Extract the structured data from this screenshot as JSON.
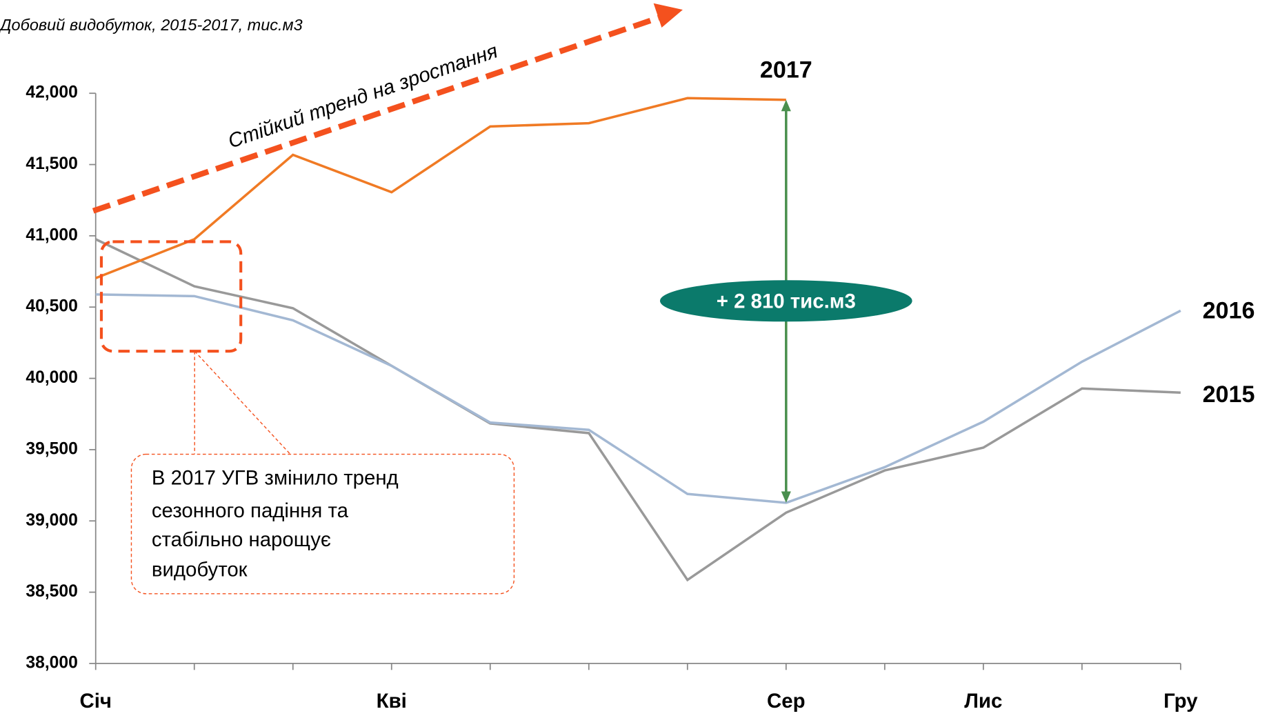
{
  "chart_data": {
    "type": "line",
    "title": "Добовий видобуток, 2015-2017, тис.м3",
    "categories": [
      "Січ",
      null,
      null,
      "Кві",
      null,
      null,
      null,
      "Сер",
      null,
      "Лис",
      null,
      "Гру"
    ],
    "series": [
      {
        "name": "2017",
        "color": "#f07a24",
        "values": [
          40703,
          40976,
          41568,
          41306,
          41767,
          41790,
          41966,
          41954,
          null,
          null,
          null,
          null
        ]
      },
      {
        "name": "2016",
        "color": "#a3b8d3",
        "values": [
          40589,
          40577,
          40407,
          40088,
          39690,
          39639,
          39189,
          39127,
          39377,
          39696,
          40117,
          40475
        ]
      },
      {
        "name": "2015",
        "color": "#999999",
        "values": [
          40976,
          40646,
          40492,
          40088,
          39684,
          39616,
          38586,
          39058,
          39354,
          39514,
          39929,
          39900
        ]
      }
    ],
    "ylim": [
      38000,
      42000
    ],
    "yticks": [
      {
        "value": 38000,
        "label": "38,000"
      },
      {
        "value": 38500,
        "label": "38,500"
      },
      {
        "value": 39000,
        "label": "39,000"
      },
      {
        "value": 39500,
        "label": "39,500"
      },
      {
        "value": 40000,
        "label": "40,000"
      },
      {
        "value": 40500,
        "label": "40,500"
      },
      {
        "value": 41000,
        "label": "41,000"
      },
      {
        "value": 41500,
        "label": "41,500"
      },
      {
        "value": 42000,
        "label": "42,000"
      }
    ],
    "grid": false,
    "annotations": {
      "trend": "Стійкий тренд на зростання",
      "difference": "+ 2 810 тис.м3",
      "note_lines": [
        "В 2017 УГВ змінило тренд",
        "сезонного падіння та",
        "стабільно нарощує",
        "видобуток"
      ]
    }
  }
}
